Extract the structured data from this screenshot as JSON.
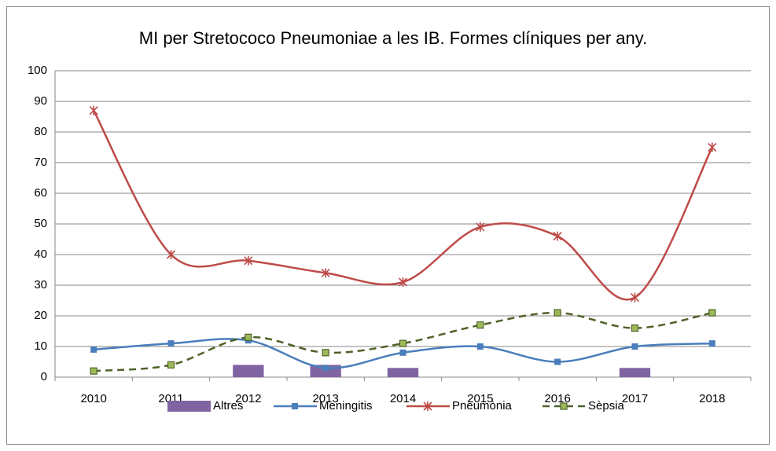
{
  "chart_data": {
    "type": "line",
    "title": "MI per Stretococo  Pneumoniae a les IB.  Formes clíniques per any.",
    "categories": [
      "2010",
      "2011",
      "2012",
      "2013",
      "2014",
      "2015",
      "2016",
      "2017",
      "2018"
    ],
    "series": [
      {
        "name": "Altres",
        "type": "bar",
        "color": "#8064a2",
        "values": [
          0,
          0,
          4,
          4,
          3,
          0,
          0,
          3,
          0
        ]
      },
      {
        "name": "Meningitis",
        "type": "line",
        "marker": "square",
        "color": "#4a7ebb",
        "values": [
          9,
          11,
          12,
          3,
          8,
          10,
          5,
          10,
          11
        ]
      },
      {
        "name": "Pneumònia",
        "type": "line",
        "marker": "star",
        "color": "#be4b48",
        "values": [
          87,
          40,
          38,
          34,
          31,
          49,
          46,
          26,
          75
        ]
      },
      {
        "name": "Sèpsia",
        "type": "line",
        "marker": "square",
        "dashed": true,
        "color": "#4f6228",
        "marker_color": "#9bbb59",
        "values": [
          2,
          4,
          13,
          8,
          11,
          17,
          21,
          16,
          21
        ]
      }
    ],
    "ylim": [
      0,
      100
    ],
    "yticks": [
      0,
      10,
      20,
      30,
      40,
      50,
      60,
      70,
      80,
      90,
      100
    ],
    "grid": true,
    "legend": "bottom",
    "smooth": true
  }
}
